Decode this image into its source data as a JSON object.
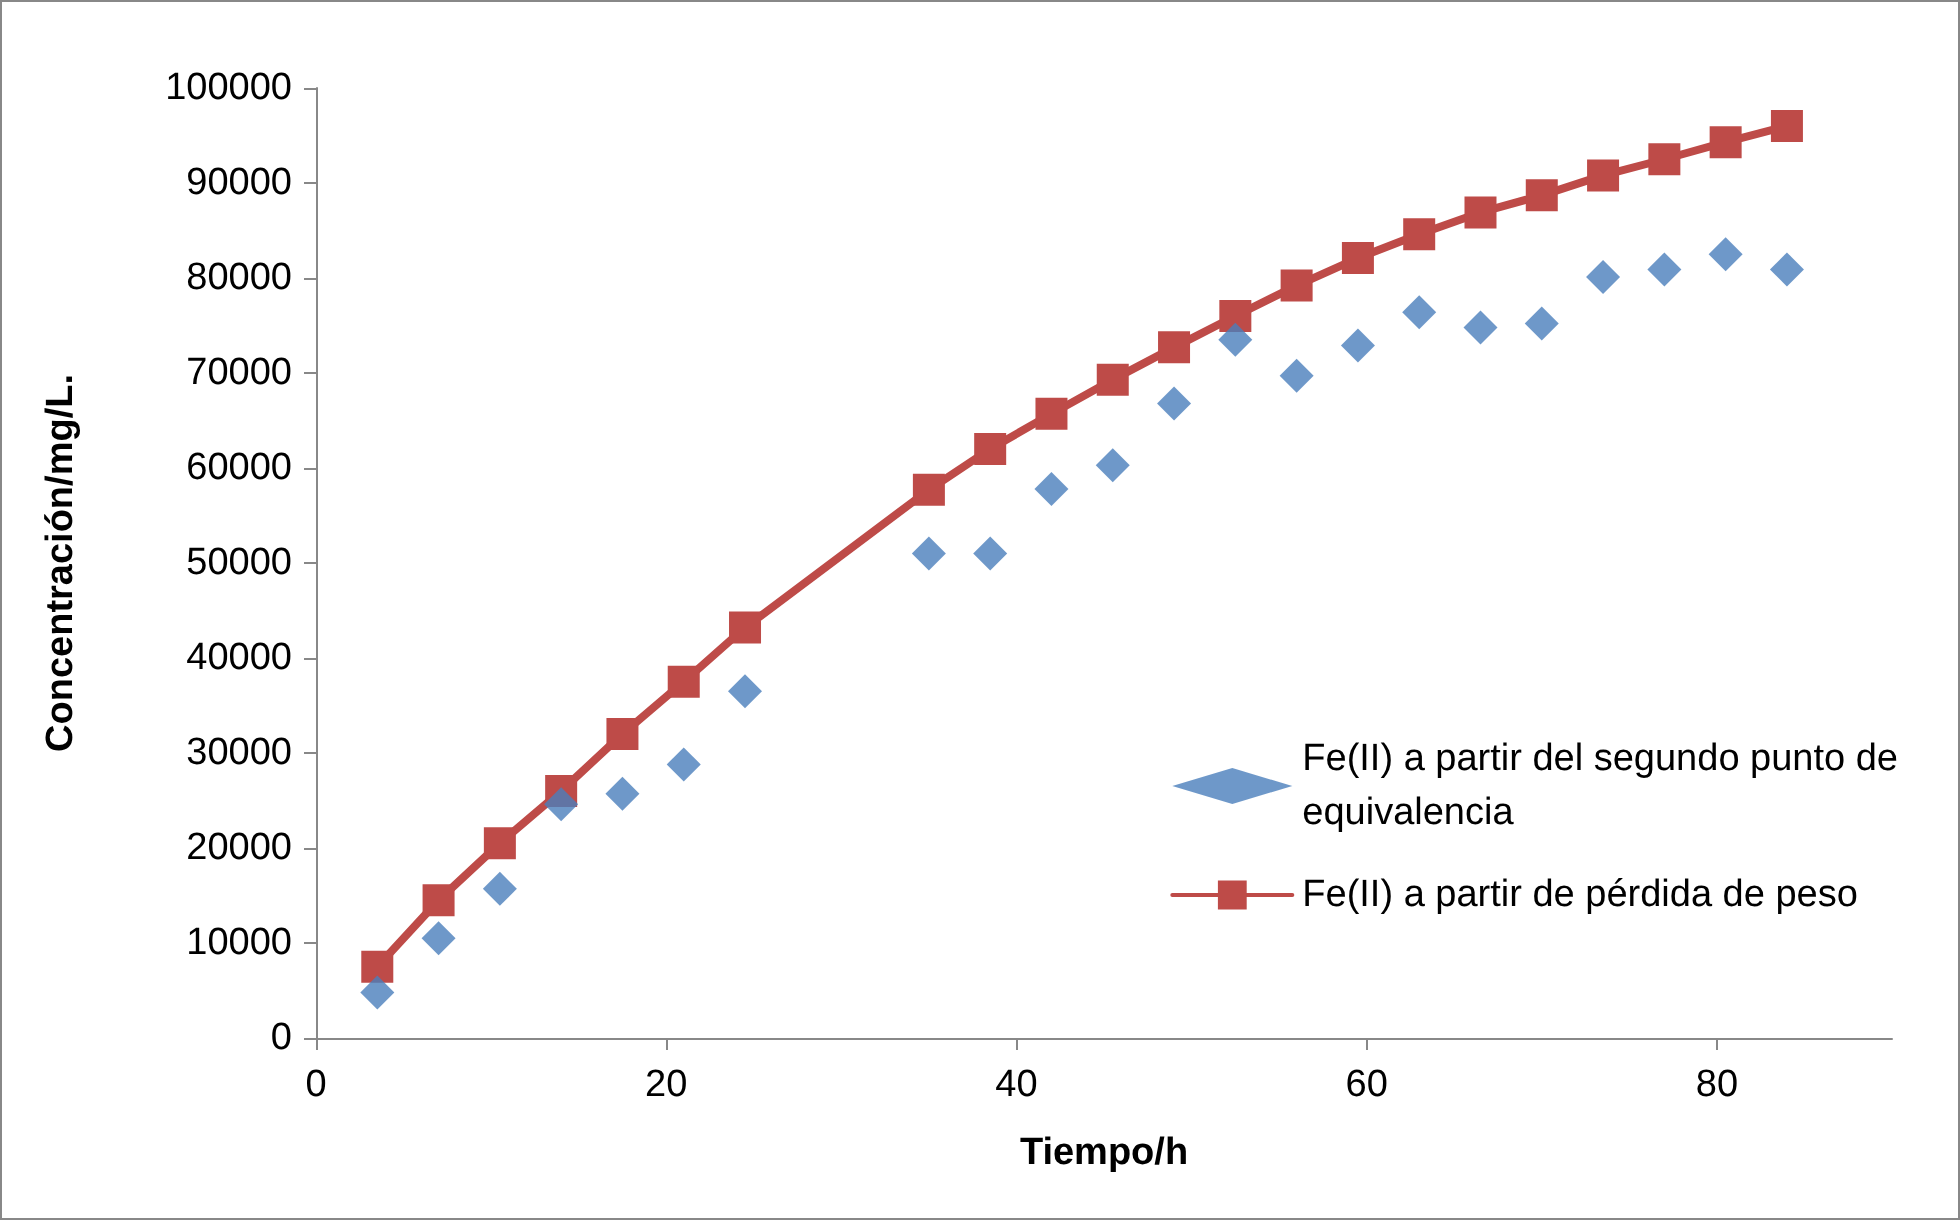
{
  "chart_data": {
    "type": "scatter",
    "xlabel": "Tiempo/h",
    "ylabel": "Concentración/mg/L.",
    "x": [
      3.5,
      7,
      10.5,
      14,
      17.5,
      21,
      24.5,
      35,
      38.5,
      42,
      45.5,
      49,
      52.5,
      56,
      59.5,
      63,
      66.5,
      70,
      73.5,
      77,
      80.5,
      84
    ],
    "series": [
      {
        "name": "Fe(II) a partir del segundo punto de equivalencia",
        "marker": "diamond",
        "color": "#4a7ebb",
        "values": [
          4800,
          10500,
          15700,
          24600,
          25700,
          28800,
          36500,
          51000,
          51000,
          57800,
          60300,
          66800,
          73500,
          69700,
          72900,
          76400,
          74800,
          75200,
          80100,
          80900,
          82500,
          80900
        ]
      },
      {
        "name": "Fe(II) a partir de pérdida de peso",
        "type": "line",
        "marker": "square",
        "color": "#be4b48",
        "values": [
          7500,
          14500,
          20500,
          26000,
          32000,
          37500,
          43200,
          57700,
          62000,
          65700,
          69300,
          72700,
          76000,
          79200,
          82100,
          84600,
          86900,
          88700,
          90800,
          92500,
          94300,
          96000
        ]
      }
    ],
    "xlim": [
      0,
      90
    ],
    "xticks": [
      0,
      20,
      40,
      60,
      80
    ],
    "ylim": [
      0,
      100000
    ],
    "yticks": [
      0,
      10000,
      20000,
      30000,
      40000,
      50000,
      60000,
      70000,
      80000,
      90000,
      100000
    ],
    "grid": false,
    "legend": "right"
  }
}
